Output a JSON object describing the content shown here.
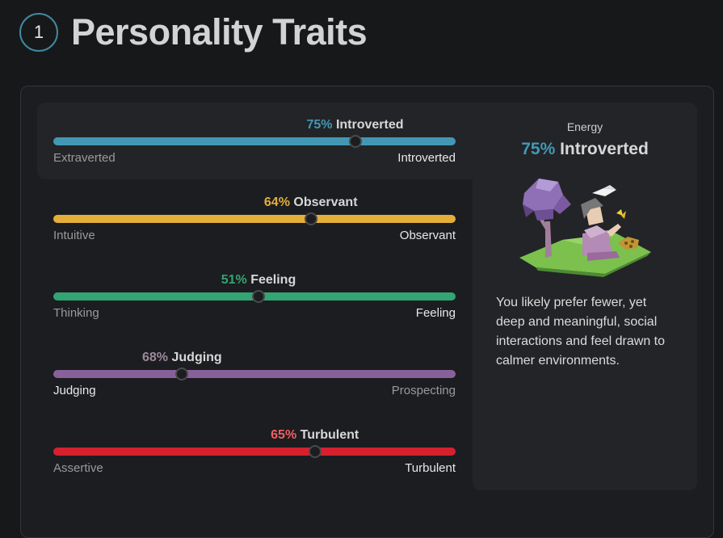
{
  "header": {
    "step": "1",
    "title": "Personality Traits"
  },
  "traits": [
    {
      "percent": "75%",
      "name": "Introverted",
      "left": "Extraverted",
      "right": "Introverted",
      "value": 0.75,
      "side": "right",
      "color": "#4298b4",
      "pct_color": "#4298b4"
    },
    {
      "percent": "64%",
      "name": "Observant",
      "left": "Intuitive",
      "right": "Observant",
      "value": 0.64,
      "side": "right",
      "color": "#e4ae3a",
      "pct_color": "#e4ae3a"
    },
    {
      "percent": "51%",
      "name": "Feeling",
      "left": "Thinking",
      "right": "Feeling",
      "value": 0.51,
      "side": "right",
      "color": "#33a474",
      "pct_color": "#33a474"
    },
    {
      "percent": "68%",
      "name": "Judging",
      "left": "Judging",
      "right": "Prospecting",
      "value": 0.68,
      "side": "left",
      "color": "#88619a",
      "pct_color": "#9c8a9a"
    },
    {
      "percent": "65%",
      "name": "Turbulent",
      "left": "Assertive",
      "right": "Turbulent",
      "value": 0.65,
      "side": "right",
      "color": "#d6202e",
      "pct_color": "#f25e62"
    }
  ],
  "detail": {
    "label": "Energy",
    "percent": "75%",
    "name": "Introverted",
    "description": "You likely prefer fewer, yet deep and meaningful, social interactions and feel drawn to calmer environments."
  }
}
